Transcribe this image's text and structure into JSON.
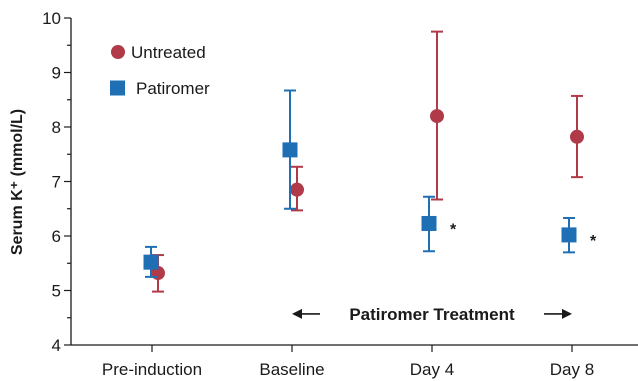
{
  "chart_data": {
    "type": "scatter",
    "title": "",
    "xlabel": "",
    "ylabel": "Serum K⁺ (mmol/L)",
    "ylim": [
      4,
      10
    ],
    "yticks": [
      4,
      5,
      6,
      7,
      8,
      9,
      10
    ],
    "categories": [
      "Pre-induction",
      "Baseline",
      "Day 4",
      "Day 8"
    ],
    "grid": false,
    "legend_position": "top-left",
    "series": [
      {
        "name": "Untreated",
        "marker": "circle",
        "color": "#b03a48",
        "values": [
          5.32,
          6.85,
          8.2,
          7.82
        ],
        "err_low": [
          4.98,
          6.47,
          6.67,
          7.08
        ],
        "err_high": [
          5.65,
          7.27,
          9.75,
          8.57
        ]
      },
      {
        "name": "Patiromer",
        "marker": "square",
        "color": "#1f6fb5",
        "values": [
          5.52,
          7.58,
          6.23,
          6.02
        ],
        "err_low": [
          5.25,
          6.5,
          5.72,
          5.7
        ],
        "err_high": [
          5.8,
          8.67,
          6.72,
          6.33
        ]
      }
    ],
    "significance_markers": [
      {
        "category": "Day 4",
        "label": "*"
      },
      {
        "category": "Day 8",
        "label": "*"
      }
    ],
    "annotation": {
      "text": "Patiromer Treatment",
      "from_category": "Baseline",
      "to_category": "Day 8"
    }
  }
}
